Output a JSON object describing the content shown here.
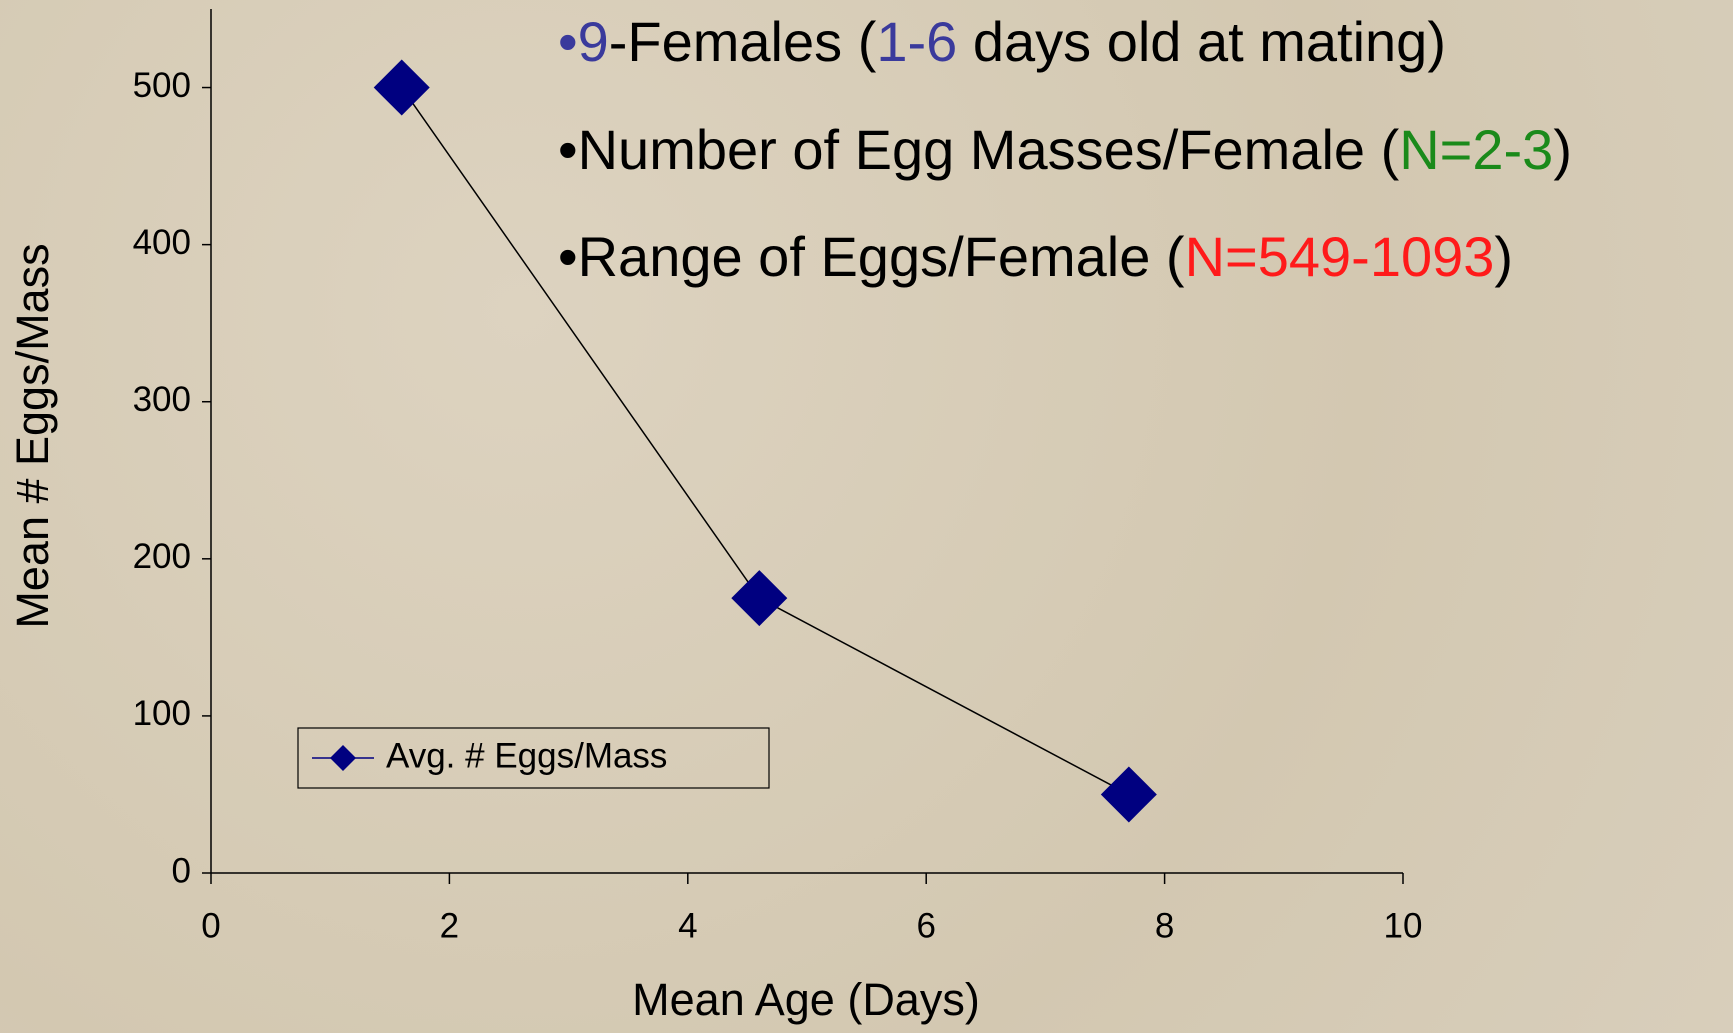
{
  "chart_data": {
    "type": "line",
    "x_label": "Mean Age (Days)",
    "y_label": "Mean # Eggs/Mass",
    "x": [
      1.6,
      4.6,
      7.7
    ],
    "series": [
      {
        "name": "Avg. # Eggs/Mass",
        "color": "#000080",
        "line_color": "#000000",
        "values": [
          500,
          175,
          50
        ]
      }
    ],
    "xlim": [
      0,
      10
    ],
    "xticks": [
      0,
      2,
      4,
      6,
      8,
      10
    ],
    "ylim": [
      0,
      550
    ],
    "yticks": [
      0,
      100,
      200,
      300,
      400,
      500
    ],
    "grid": false,
    "legend": "lower left",
    "annotations": [
      [
        {
          "text": "•9",
          "color": "#3a3a9c"
        },
        {
          "text": "-Females (",
          "color": "#000000"
        },
        {
          "text": "1-6",
          "color": "#3a3a9c"
        },
        {
          "text": " days old at mating)",
          "color": "#000000"
        }
      ],
      [
        {
          "text": "•Number of Egg Masses/Female (",
          "color": "#000000"
        },
        {
          "text": "N=2-3",
          "color": "#1a8a1a"
        },
        {
          "text": ")",
          "color": "#000000"
        }
      ],
      [
        {
          "text": "•Range of Eggs/Female (",
          "color": "#000000"
        },
        {
          "text": "N=549-1093",
          "color": "#ff1a1a"
        },
        {
          "text": ")",
          "color": "#000000"
        }
      ]
    ]
  }
}
